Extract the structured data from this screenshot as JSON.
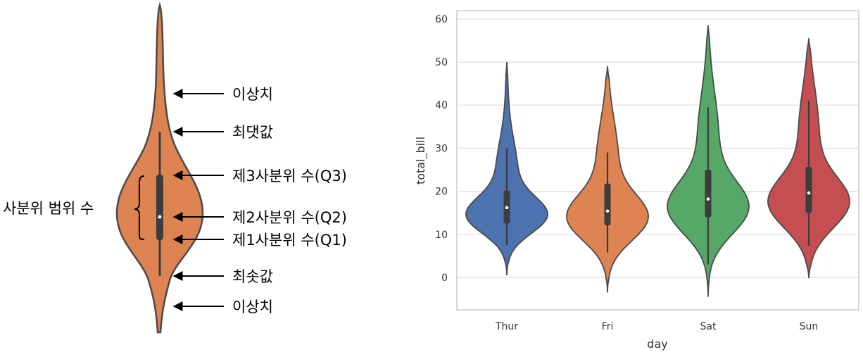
{
  "diagram": {
    "color": "#DD8452",
    "labels": {
      "outlier_top": "이상치",
      "max": "최댓값",
      "q3": "제3사분위 수(Q3)",
      "q2": "제2사분위 수(Q2)",
      "q1": "제1사분위 수(Q1)",
      "min": "최솟값",
      "outlier_bottom": "이상치",
      "iqr": "사분위 범위 수"
    }
  },
  "chart_data": {
    "type": "violin",
    "xlabel": "day",
    "ylabel": "total_bill",
    "ylim": [
      -8,
      62
    ],
    "yticks": [
      0,
      10,
      20,
      30,
      40,
      50,
      60
    ],
    "grid": true,
    "categories": [
      "Thur",
      "Fri",
      "Sat",
      "Sun"
    ],
    "series": [
      {
        "category": "Thur",
        "color": "#4C72B0",
        "min": 7.5,
        "q1": 12.5,
        "median": 16.2,
        "q3": 20.2,
        "max": 30.0,
        "kde_range": [
          0.5,
          50.0
        ]
      },
      {
        "category": "Fri",
        "color": "#DD8452",
        "min": 5.8,
        "q1": 12.1,
        "median": 15.4,
        "q3": 21.8,
        "max": 29.0,
        "kde_range": [
          -3.5,
          49.0
        ]
      },
      {
        "category": "Sat",
        "color": "#55A868",
        "min": 3.0,
        "q1": 13.9,
        "median": 18.2,
        "q3": 25.0,
        "max": 39.5,
        "kde_range": [
          -4.5,
          58.5
        ]
      },
      {
        "category": "Sun",
        "color": "#C44E52",
        "min": 7.3,
        "q1": 14.9,
        "median": 19.6,
        "q3": 25.7,
        "max": 41.0,
        "kde_range": [
          -0.2,
          55.5
        ]
      }
    ]
  }
}
